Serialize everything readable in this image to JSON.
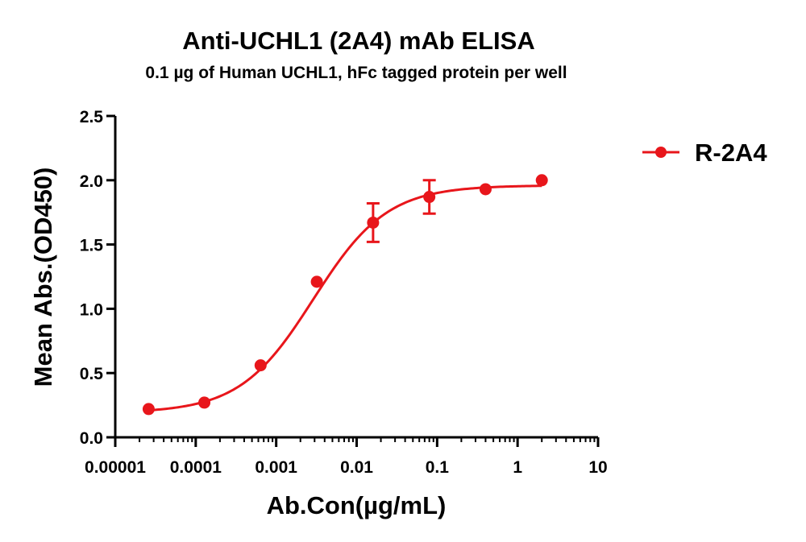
{
  "chart_data": {
    "type": "scatter",
    "title": "Anti-UCHL1 (2A4) mAb ELISA",
    "subtitle": "0.1 µg of Human UCHL1, hFc tagged protein per well",
    "xlabel": "Ab.Con(µg/mL)",
    "ylabel": "Mean Abs.(OD450)",
    "xscale": "log",
    "xlim": [
      1e-05,
      10
    ],
    "ylim": [
      0,
      2.5
    ],
    "x_ticks": [
      1e-05,
      0.0001,
      0.001,
      0.01,
      0.1,
      1,
      10
    ],
    "x_tick_labels": [
      "0.00001",
      "0.0001",
      "0.001",
      "0.01",
      "0.1",
      "1",
      "10"
    ],
    "y_ticks": [
      0,
      0.5,
      1,
      1.5,
      2,
      2.5
    ],
    "y_tick_labels": [
      "0.0",
      "0.5",
      "1.0",
      "1.5",
      "2.0",
      "2.5"
    ],
    "legend_position": "top-right",
    "fit": "4PL sigmoidal curve",
    "series": [
      {
        "name": "R-2A4",
        "color": "#e8161b",
        "marker": "circle",
        "x": [
          2.6e-05,
          0.000128,
          0.00064,
          0.0032,
          0.016,
          0.08,
          0.4,
          2
        ],
        "y": [
          0.22,
          0.27,
          0.56,
          1.21,
          1.67,
          1.87,
          1.93,
          2.0
        ],
        "error": [
          0,
          0,
          0,
          0,
          0.15,
          0.13,
          0,
          0
        ]
      }
    ]
  }
}
